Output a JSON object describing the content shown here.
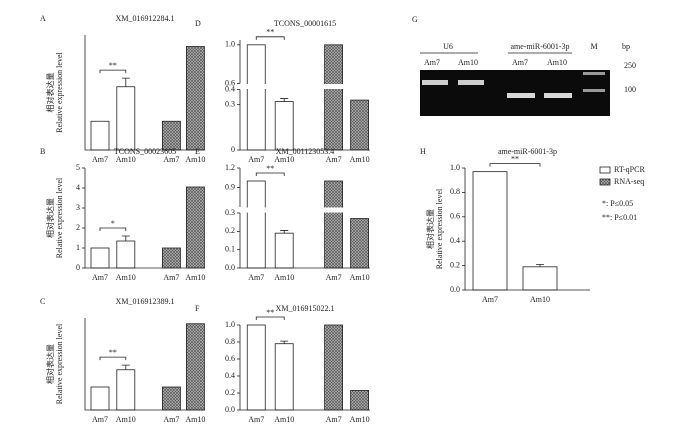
{
  "chart_data": [
    {
      "type": "bar",
      "panel": "A",
      "title": "XM_016912284.1",
      "ylabel_cn": "相对表达量",
      "ylabel": "Relative expression level",
      "categories": [
        "Am7",
        "Am10",
        "Am7",
        "Am10"
      ],
      "ylim": [
        0,
        4
      ],
      "annotation": "**",
      "series": [
        {
          "name": "RT-qPCR",
          "color": "#ffffff",
          "values": [
            1,
            2.2,
            null,
            null
          ],
          "errors": [
            0,
            0.3,
            null,
            null
          ]
        },
        {
          "name": "RNA-seq",
          "color": "#555555",
          "hatch": true,
          "values": [
            null,
            null,
            1,
            3.6
          ]
        }
      ]
    },
    {
      "type": "bar",
      "panel": "B",
      "title": "TCONS_00023605",
      "ylabel_cn": "相对表达量",
      "ylabel": "Relative expression level",
      "categories": [
        "Am7",
        "Am10",
        "Am7",
        "Am10"
      ],
      "ylim": [
        0,
        5
      ],
      "yticks": [
        0,
        1,
        2,
        3,
        4,
        5
      ],
      "annotation": "*",
      "series": [
        {
          "name": "RT-qPCR",
          "color": "#ffffff",
          "values": [
            1,
            1.35,
            null,
            null
          ],
          "errors": [
            0,
            0.25,
            null,
            null
          ]
        },
        {
          "name": "RNA-seq",
          "color": "#555555",
          "hatch": true,
          "values": [
            null,
            null,
            1,
            4.05
          ]
        }
      ]
    },
    {
      "type": "bar",
      "panel": "C",
      "title": "XM_016912389.1",
      "ylabel_cn": "相对表达量",
      "ylabel": "Relative expression level",
      "categories": [
        "Am7",
        "Am10",
        "Am7",
        "Am10"
      ],
      "ylim": [
        0,
        4
      ],
      "annotation": "**",
      "series": [
        {
          "name": "RT-qPCR",
          "color": "#ffffff",
          "values": [
            1,
            1.75,
            null,
            null
          ],
          "errors": [
            0,
            0.2,
            null,
            null
          ]
        },
        {
          "name": "RNA-seq",
          "color": "#555555",
          "hatch": true,
          "values": [
            null,
            null,
            1,
            3.75
          ]
        }
      ]
    },
    {
      "type": "bar",
      "panel": "D",
      "title": "TCONS_00001615",
      "categories": [
        "Am7",
        "Am10",
        "Am7",
        "Am10"
      ],
      "ylim": [
        0,
        1.05
      ],
      "ybreak": [
        0.4,
        0.6
      ],
      "yticks": [
        0,
        0.3,
        0.4,
        0.6,
        {
          "value": 1,
          "label": "1.0"
        }
      ],
      "annotation": "**",
      "series": [
        {
          "name": "RT-qPCR",
          "color": "#ffffff",
          "values": [
            1,
            0.32,
            null,
            null
          ],
          "errors": [
            0,
            0.02,
            null,
            null
          ]
        },
        {
          "name": "RNA-seq",
          "color": "#555555",
          "hatch": true,
          "values": [
            null,
            null,
            1,
            0.33
          ]
        }
      ]
    },
    {
      "type": "bar",
      "panel": "E",
      "title": "XM_001123053.4",
      "categories": [
        "Am7",
        "Am10",
        "Am7",
        "Am10"
      ],
      "ylim": [
        0,
        1.2
      ],
      "ybreak": [
        0.3,
        0.6
      ],
      "yticks": [
        {
          "value": 0,
          "label": "0.0"
        },
        0.1,
        0.2,
        0.3,
        0.9,
        1.2
      ],
      "annotation": "**",
      "series": [
        {
          "name": "RT-qPCR",
          "color": "#ffffff",
          "values": [
            1,
            0.19,
            null,
            null
          ],
          "errors": [
            0,
            0.015,
            null,
            null
          ]
        },
        {
          "name": "RNA-seq",
          "color": "#555555",
          "hatch": true,
          "values": [
            null,
            null,
            1,
            0.27
          ]
        }
      ]
    },
    {
      "type": "bar",
      "panel": "F",
      "title": "XM_016915022.1",
      "categories": [
        "Am7",
        "Am10",
        "Am7",
        "Am10"
      ],
      "ylim": [
        0,
        1
      ],
      "yticks": [
        {
          "value": 0,
          "label": "0.0"
        },
        0.2,
        0.4,
        0.6,
        0.8,
        {
          "value": 1,
          "label": "1.0"
        }
      ],
      "annotation": "**",
      "series": [
        {
          "name": "RT-qPCR",
          "color": "#ffffff",
          "values": [
            1,
            0.78,
            null,
            null
          ],
          "errors": [
            0,
            0.03,
            null,
            null
          ]
        },
        {
          "name": "RNA-seq",
          "color": "#555555",
          "hatch": true,
          "values": [
            null,
            null,
            1,
            0.23
          ]
        }
      ]
    },
    {
      "type": "bar",
      "panel": "H",
      "title": "ame-miR-6001-3p",
      "ylabel_cn": "相对表达量",
      "ylabel": "Relative expression level",
      "categories": [
        "Am7",
        "Am10"
      ],
      "ylim": [
        0,
        1
      ],
      "yticks": [
        {
          "value": 0,
          "label": "0.0"
        },
        0.2,
        0.4,
        0.6,
        0.8,
        {
          "value": 1,
          "label": "1.0"
        }
      ],
      "annotation": "**",
      "series": [
        {
          "name": "RT-qPCR",
          "color": "#ffffff",
          "values": [
            0.97,
            0.19
          ],
          "errors": [
            0,
            0.02
          ]
        }
      ],
      "legend": [
        {
          "name": "RT-qPCR",
          "color": "#ffffff"
        },
        {
          "name": "RNA-seq",
          "color": "#555555",
          "hatch": true
        }
      ],
      "notes": [
        "*: P≤0.05",
        "**: P≤0.01"
      ]
    }
  ],
  "gel": {
    "panel": "G",
    "groups": [
      "U6",
      "ame-miR-6001-3p"
    ],
    "lanes": [
      "Am7",
      "Am10",
      "Am7",
      "Am10",
      "M"
    ],
    "unit": "bp",
    "markers": [
      "250",
      "100"
    ]
  }
}
